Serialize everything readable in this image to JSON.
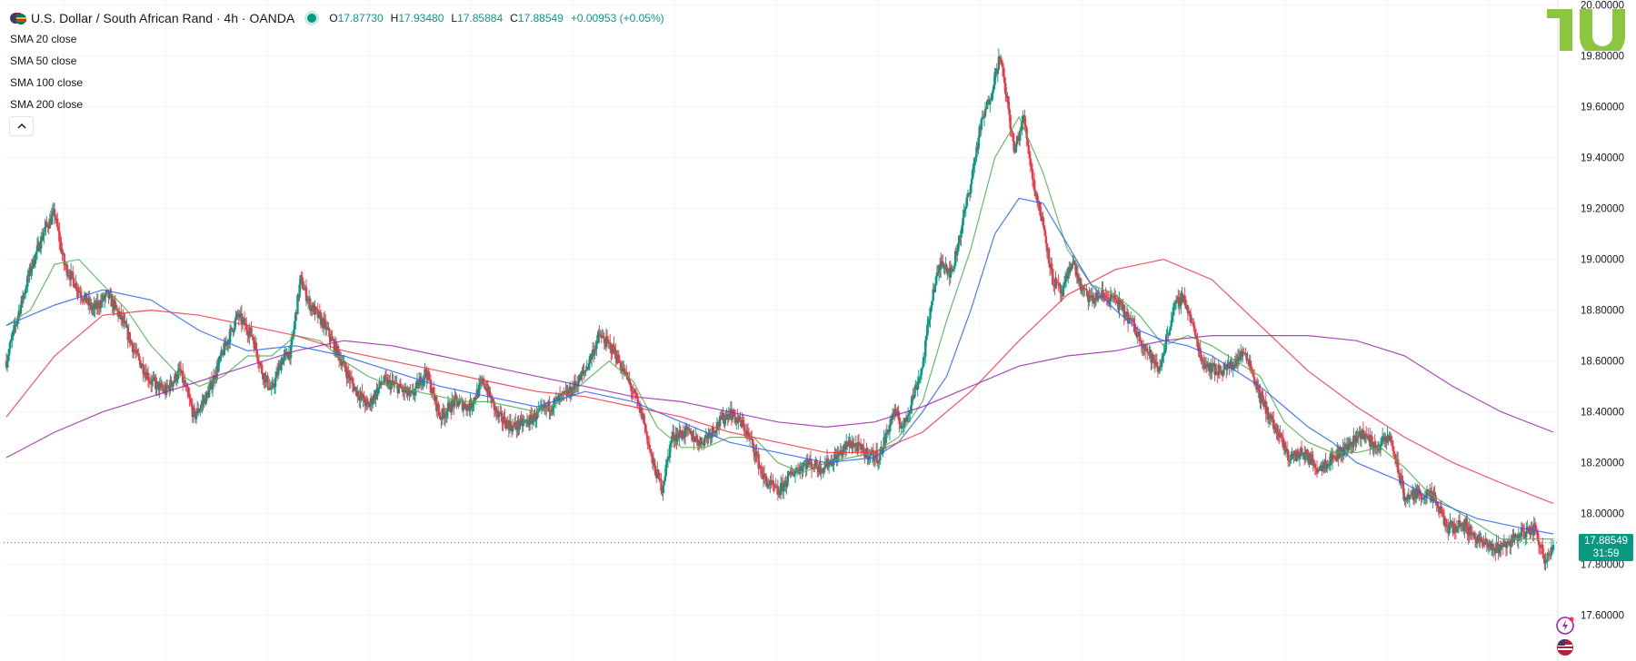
{
  "header": {
    "title": "U.S. Dollar / South African Rand · 4h · OANDA",
    "ohlc": {
      "open_label": "O",
      "open": "17.87730",
      "high_label": "H",
      "high": "17.93480",
      "low_label": "L",
      "low": "17.85884",
      "close_label": "C",
      "close": "17.88549",
      "change": "+0.00953 (+0.05%)"
    }
  },
  "legend": [
    "SMA 20 close",
    "SMA 50 close",
    "SMA 100 close",
    "SMA 200 close"
  ],
  "price_tag": {
    "price": "17.88549",
    "countdown": "31:59"
  },
  "colors": {
    "up": "#089981",
    "down": "#f23645",
    "sma20": "#4caf50",
    "sma50": "#2962ff",
    "sma100": "#f23645",
    "sma200": "#9c27b0",
    "grid": "#f0f3fa",
    "axis_text": "#131722"
  },
  "chart_data": {
    "type": "candlestick",
    "symbol": "USDZAR",
    "timeframe": "4h",
    "ylim": [
      17.42,
      20.02
    ],
    "y_ticks": [
      "17.60000",
      "17.80000",
      "18.00000",
      "18.20000",
      "18.40000",
      "18.60000",
      "18.80000",
      "19.00000",
      "19.20000",
      "19.40000",
      "19.60000",
      "19.80000",
      "20.00000"
    ],
    "last_close": 17.88549,
    "close_path": [
      [
        0,
        18.6
      ],
      [
        12,
        18.78
      ],
      [
        25,
        18.96
      ],
      [
        40,
        19.12
      ],
      [
        50,
        19.18
      ],
      [
        60,
        18.98
      ],
      [
        75,
        18.88
      ],
      [
        90,
        18.8
      ],
      [
        105,
        18.86
      ],
      [
        120,
        18.76
      ],
      [
        135,
        18.62
      ],
      [
        150,
        18.52
      ],
      [
        165,
        18.48
      ],
      [
        180,
        18.56
      ],
      [
        195,
        18.38
      ],
      [
        210,
        18.48
      ],
      [
        225,
        18.64
      ],
      [
        240,
        18.78
      ],
      [
        255,
        18.7
      ],
      [
        265,
        18.56
      ],
      [
        275,
        18.48
      ],
      [
        285,
        18.6
      ],
      [
        295,
        18.64
      ],
      [
        305,
        18.92
      ],
      [
        315,
        18.82
      ],
      [
        330,
        18.74
      ],
      [
        345,
        18.62
      ],
      [
        360,
        18.5
      ],
      [
        375,
        18.42
      ],
      [
        390,
        18.52
      ],
      [
        405,
        18.5
      ],
      [
        420,
        18.46
      ],
      [
        435,
        18.56
      ],
      [
        450,
        18.38
      ],
      [
        465,
        18.44
      ],
      [
        480,
        18.42
      ],
      [
        495,
        18.52
      ],
      [
        510,
        18.38
      ],
      [
        525,
        18.34
      ],
      [
        540,
        18.36
      ],
      [
        555,
        18.4
      ],
      [
        570,
        18.44
      ],
      [
        585,
        18.48
      ],
      [
        600,
        18.56
      ],
      [
        615,
        18.7
      ],
      [
        630,
        18.64
      ],
      [
        645,
        18.52
      ],
      [
        660,
        18.38
      ],
      [
        670,
        18.2
      ],
      [
        680,
        18.1
      ],
      [
        690,
        18.3
      ],
      [
        705,
        18.32
      ],
      [
        720,
        18.28
      ],
      [
        735,
        18.34
      ],
      [
        750,
        18.4
      ],
      [
        765,
        18.34
      ],
      [
        775,
        18.26
      ],
      [
        785,
        18.14
      ],
      [
        800,
        18.08
      ],
      [
        815,
        18.16
      ],
      [
        830,
        18.2
      ],
      [
        845,
        18.18
      ],
      [
        860,
        18.22
      ],
      [
        875,
        18.28
      ],
      [
        890,
        18.24
      ],
      [
        905,
        18.22
      ],
      [
        920,
        18.4
      ],
      [
        930,
        18.34
      ],
      [
        940,
        18.46
      ],
      [
        950,
        18.58
      ],
      [
        960,
        18.86
      ],
      [
        970,
        19.0
      ],
      [
        980,
        18.94
      ],
      [
        990,
        19.12
      ],
      [
        1000,
        19.3
      ],
      [
        1010,
        19.52
      ],
      [
        1020,
        19.64
      ],
      [
        1030,
        19.8
      ],
      [
        1038,
        19.62
      ],
      [
        1045,
        19.42
      ],
      [
        1055,
        19.56
      ],
      [
        1065,
        19.3
      ],
      [
        1075,
        19.14
      ],
      [
        1085,
        18.92
      ],
      [
        1095,
        18.86
      ],
      [
        1105,
        19.0
      ],
      [
        1115,
        18.88
      ],
      [
        1125,
        18.84
      ],
      [
        1135,
        18.86
      ],
      [
        1150,
        18.84
      ],
      [
        1165,
        18.76
      ],
      [
        1180,
        18.66
      ],
      [
        1195,
        18.56
      ],
      [
        1210,
        18.8
      ],
      [
        1220,
        18.86
      ],
      [
        1230,
        18.74
      ],
      [
        1240,
        18.6
      ],
      [
        1255,
        18.56
      ],
      [
        1270,
        18.58
      ],
      [
        1285,
        18.64
      ],
      [
        1300,
        18.46
      ],
      [
        1315,
        18.34
      ],
      [
        1330,
        18.22
      ],
      [
        1345,
        18.24
      ],
      [
        1360,
        18.18
      ],
      [
        1375,
        18.22
      ],
      [
        1390,
        18.26
      ],
      [
        1405,
        18.32
      ],
      [
        1420,
        18.26
      ],
      [
        1435,
        18.3
      ],
      [
        1450,
        18.06
      ],
      [
        1465,
        18.08
      ],
      [
        1480,
        18.06
      ],
      [
        1495,
        17.94
      ],
      [
        1510,
        17.96
      ],
      [
        1525,
        17.9
      ],
      [
        1540,
        17.86
      ],
      [
        1555,
        17.88
      ],
      [
        1570,
        17.92
      ],
      [
        1585,
        17.94
      ],
      [
        1595,
        17.82
      ],
      [
        1604,
        17.88
      ]
    ],
    "sma20_path": [
      [
        0,
        18.74
      ],
      [
        25,
        18.8
      ],
      [
        50,
        18.98
      ],
      [
        75,
        19.0
      ],
      [
        100,
        18.9
      ],
      [
        125,
        18.8
      ],
      [
        150,
        18.66
      ],
      [
        175,
        18.56
      ],
      [
        200,
        18.5
      ],
      [
        225,
        18.54
      ],
      [
        250,
        18.62
      ],
      [
        275,
        18.62
      ],
      [
        300,
        18.7
      ],
      [
        325,
        18.68
      ],
      [
        350,
        18.6
      ],
      [
        375,
        18.54
      ],
      [
        400,
        18.5
      ],
      [
        425,
        18.48
      ],
      [
        450,
        18.46
      ],
      [
        475,
        18.44
      ],
      [
        500,
        18.44
      ],
      [
        525,
        18.42
      ],
      [
        550,
        18.4
      ],
      [
        575,
        18.44
      ],
      [
        600,
        18.52
      ],
      [
        625,
        18.6
      ],
      [
        650,
        18.52
      ],
      [
        675,
        18.34
      ],
      [
        700,
        18.26
      ],
      [
        725,
        18.26
      ],
      [
        750,
        18.3
      ],
      [
        775,
        18.3
      ],
      [
        800,
        18.2
      ],
      [
        825,
        18.16
      ],
      [
        850,
        18.2
      ],
      [
        875,
        18.22
      ],
      [
        900,
        18.24
      ],
      [
        925,
        18.3
      ],
      [
        950,
        18.44
      ],
      [
        975,
        18.76
      ],
      [
        1000,
        19.04
      ],
      [
        1025,
        19.4
      ],
      [
        1050,
        19.56
      ],
      [
        1075,
        19.34
      ],
      [
        1100,
        19.04
      ],
      [
        1125,
        18.9
      ],
      [
        1150,
        18.86
      ],
      [
        1175,
        18.78
      ],
      [
        1200,
        18.66
      ],
      [
        1225,
        18.7
      ],
      [
        1250,
        18.66
      ],
      [
        1275,
        18.6
      ],
      [
        1300,
        18.54
      ],
      [
        1325,
        18.36
      ],
      [
        1350,
        18.28
      ],
      [
        1375,
        18.24
      ],
      [
        1400,
        18.24
      ],
      [
        1425,
        18.26
      ],
      [
        1450,
        18.18
      ],
      [
        1475,
        18.08
      ],
      [
        1500,
        18.02
      ],
      [
        1525,
        17.96
      ],
      [
        1550,
        17.9
      ],
      [
        1575,
        17.9
      ],
      [
        1604,
        17.9
      ]
    ],
    "sma50_path": [
      [
        0,
        18.74
      ],
      [
        50,
        18.82
      ],
      [
        100,
        18.88
      ],
      [
        150,
        18.84
      ],
      [
        200,
        18.72
      ],
      [
        250,
        18.64
      ],
      [
        300,
        18.66
      ],
      [
        350,
        18.62
      ],
      [
        400,
        18.56
      ],
      [
        450,
        18.5
      ],
      [
        500,
        18.46
      ],
      [
        550,
        18.42
      ],
      [
        600,
        18.48
      ],
      [
        650,
        18.44
      ],
      [
        700,
        18.36
      ],
      [
        750,
        18.28
      ],
      [
        800,
        18.24
      ],
      [
        850,
        18.2
      ],
      [
        900,
        18.22
      ],
      [
        925,
        18.28
      ],
      [
        950,
        18.4
      ],
      [
        975,
        18.54
      ],
      [
        1000,
        18.8
      ],
      [
        1025,
        19.1
      ],
      [
        1050,
        19.24
      ],
      [
        1075,
        19.22
      ],
      [
        1100,
        19.06
      ],
      [
        1125,
        18.9
      ],
      [
        1150,
        18.8
      ],
      [
        1175,
        18.72
      ],
      [
        1200,
        18.68
      ],
      [
        1225,
        18.66
      ],
      [
        1250,
        18.62
      ],
      [
        1275,
        18.56
      ],
      [
        1300,
        18.5
      ],
      [
        1325,
        18.42
      ],
      [
        1350,
        18.34
      ],
      [
        1375,
        18.28
      ],
      [
        1400,
        18.2
      ],
      [
        1425,
        18.16
      ],
      [
        1450,
        18.12
      ],
      [
        1475,
        18.06
      ],
      [
        1500,
        18.02
      ],
      [
        1525,
        17.98
      ],
      [
        1550,
        17.96
      ],
      [
        1575,
        17.94
      ],
      [
        1604,
        17.92
      ]
    ],
    "sma100_path": [
      [
        0,
        18.38
      ],
      [
        50,
        18.62
      ],
      [
        100,
        18.78
      ],
      [
        150,
        18.8
      ],
      [
        200,
        18.78
      ],
      [
        250,
        18.74
      ],
      [
        300,
        18.7
      ],
      [
        350,
        18.64
      ],
      [
        400,
        18.6
      ],
      [
        450,
        18.56
      ],
      [
        500,
        18.52
      ],
      [
        550,
        18.48
      ],
      [
        600,
        18.46
      ],
      [
        650,
        18.42
      ],
      [
        700,
        18.38
      ],
      [
        750,
        18.32
      ],
      [
        800,
        18.28
      ],
      [
        850,
        18.24
      ],
      [
        900,
        18.24
      ],
      [
        950,
        18.32
      ],
      [
        1000,
        18.48
      ],
      [
        1050,
        18.68
      ],
      [
        1100,
        18.86
      ],
      [
        1150,
        18.96
      ],
      [
        1200,
        19.0
      ],
      [
        1250,
        18.92
      ],
      [
        1300,
        18.74
      ],
      [
        1350,
        18.56
      ],
      [
        1400,
        18.42
      ],
      [
        1450,
        18.3
      ],
      [
        1500,
        18.2
      ],
      [
        1550,
        18.12
      ],
      [
        1604,
        18.04
      ]
    ],
    "sma200_path": [
      [
        0,
        18.22
      ],
      [
        50,
        18.32
      ],
      [
        100,
        18.4
      ],
      [
        150,
        18.46
      ],
      [
        200,
        18.52
      ],
      [
        250,
        18.58
      ],
      [
        300,
        18.64
      ],
      [
        350,
        18.68
      ],
      [
        400,
        18.66
      ],
      [
        450,
        18.62
      ],
      [
        500,
        18.58
      ],
      [
        550,
        18.54
      ],
      [
        600,
        18.5
      ],
      [
        650,
        18.46
      ],
      [
        700,
        18.44
      ],
      [
        750,
        18.4
      ],
      [
        800,
        18.36
      ],
      [
        850,
        18.34
      ],
      [
        900,
        18.36
      ],
      [
        950,
        18.42
      ],
      [
        1000,
        18.5
      ],
      [
        1050,
        18.58
      ],
      [
        1100,
        18.62
      ],
      [
        1150,
        18.64
      ],
      [
        1200,
        18.68
      ],
      [
        1250,
        18.7
      ],
      [
        1300,
        18.7
      ],
      [
        1350,
        18.7
      ],
      [
        1400,
        18.68
      ],
      [
        1450,
        18.62
      ],
      [
        1500,
        18.5
      ],
      [
        1550,
        18.4
      ],
      [
        1604,
        18.32
      ]
    ]
  }
}
